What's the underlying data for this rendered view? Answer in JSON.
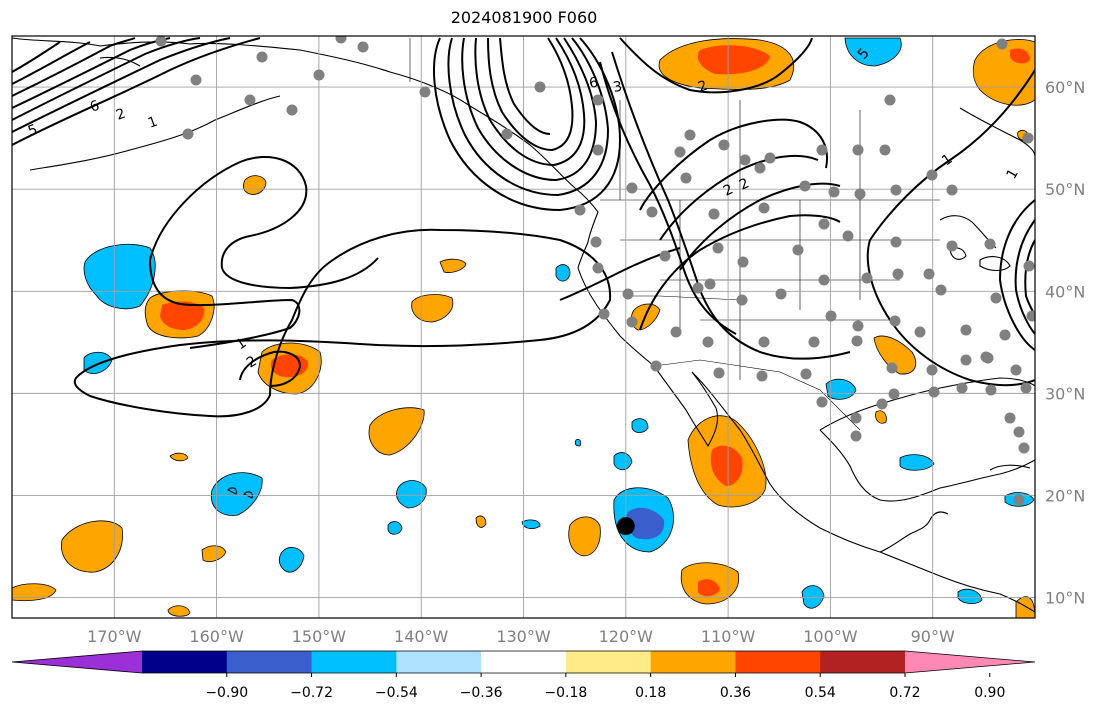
{
  "title": "2024081900 F060",
  "map": {
    "type": "contour-map",
    "projection": "plate-carree",
    "lon_range": [
      -180,
      -80
    ],
    "lat_range": [
      8,
      65
    ],
    "grid": true,
    "lon_labels": [
      "170°W",
      "160°W",
      "150°W",
      "140°W",
      "130°W",
      "120°W",
      "110°W",
      "100°W",
      "90°W"
    ],
    "lat_labels": [
      "60°N",
      "50°N",
      "40°N",
      "30°N",
      "20°N",
      "10°N"
    ],
    "contour_labels": [
      "1",
      "2",
      "6",
      "5",
      "2",
      "1",
      "6",
      "3",
      "2",
      "1",
      "2",
      "2",
      "5",
      "1"
    ],
    "marker": {
      "lon": -120,
      "lat": 17,
      "color": "#000000"
    },
    "station_color": "#808080"
  },
  "colorbar": {
    "tick_labels": [
      "−0.90",
      "−0.72",
      "−0.54",
      "−0.36",
      "−0.18",
      "0.18",
      "0.36",
      "0.54",
      "0.72",
      "0.90"
    ],
    "colors": [
      "#9b30d9",
      "#00008b",
      "#3a5fcd",
      "#00bfff",
      "#aee0ff",
      "#ffffff",
      "#ffeb88",
      "#ffa500",
      "#ff4500",
      "#b22222",
      "#ff88b4"
    ]
  }
}
